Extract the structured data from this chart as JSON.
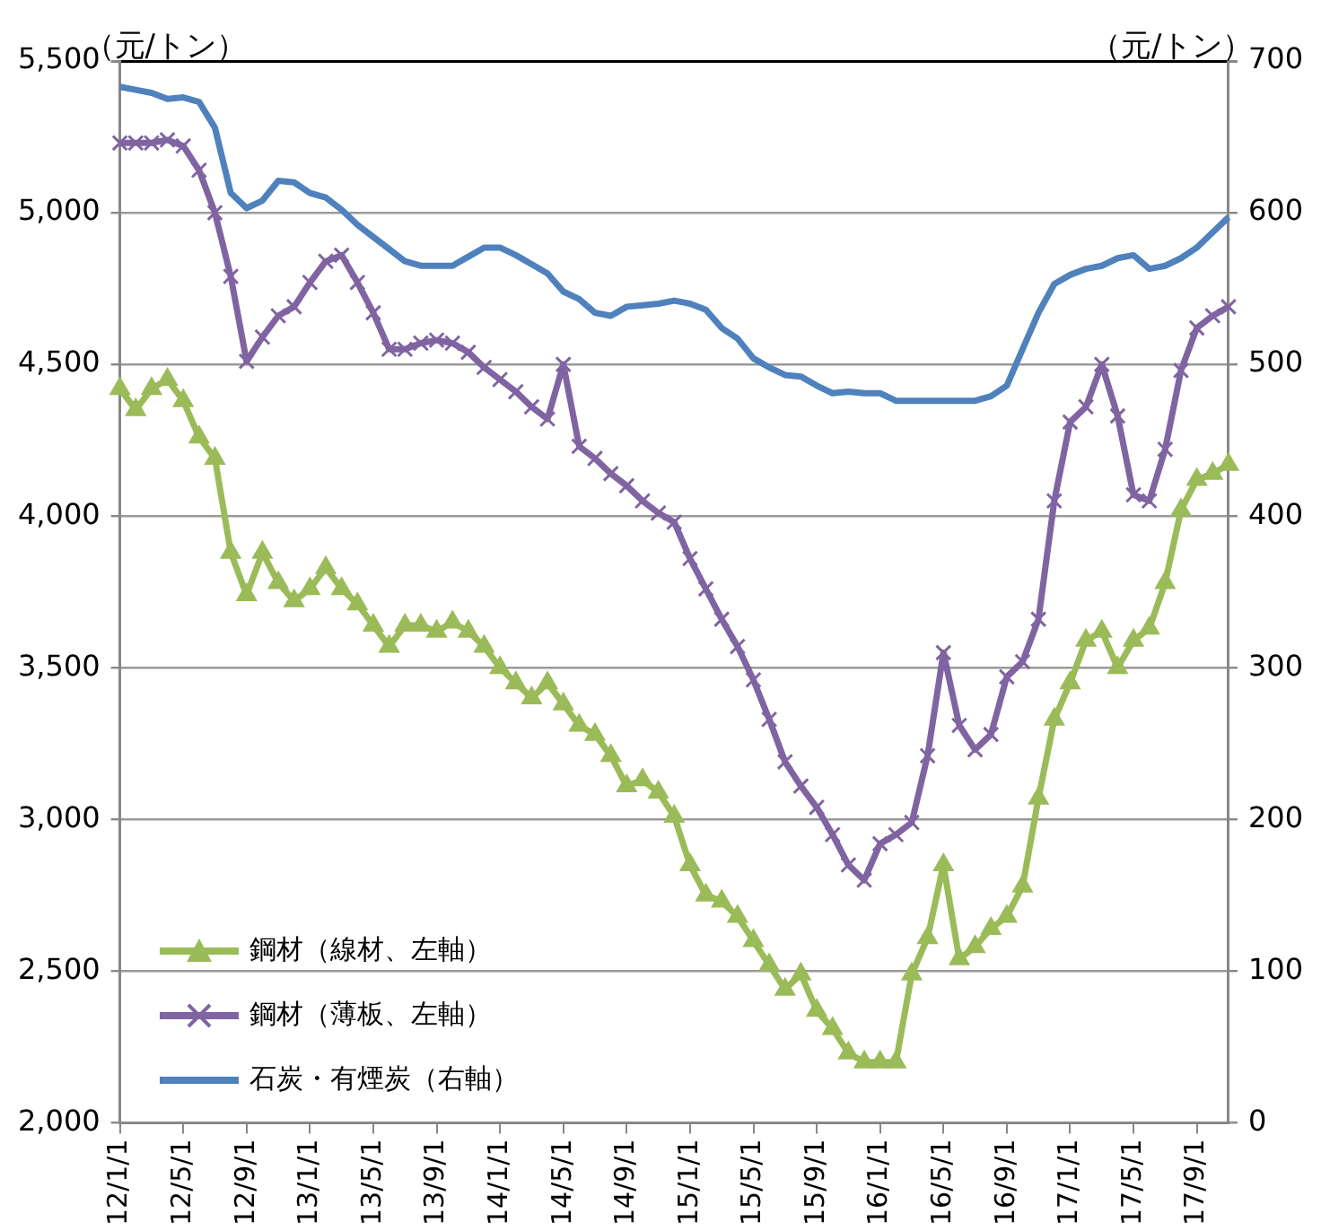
{
  "chart_data": {
    "type": "line",
    "categories": [
      "12/1/1",
      null,
      null,
      null,
      "12/5/1",
      null,
      null,
      null,
      "12/9/1",
      null,
      null,
      null,
      "13/1/1",
      null,
      null,
      null,
      "13/5/1",
      null,
      null,
      null,
      "13/9/1",
      null,
      null,
      null,
      "14/1/1",
      null,
      null,
      null,
      "14/5/1",
      null,
      null,
      null,
      "14/9/1",
      null,
      null,
      null,
      "15/1/1",
      null,
      null,
      null,
      "15/5/1",
      null,
      null,
      null,
      "15/9/1",
      null,
      null,
      null,
      "16/1/1",
      null,
      null,
      null,
      "16/5/1",
      null,
      null,
      null,
      "16/9/1",
      null,
      null,
      null,
      "17/1/1",
      null,
      null,
      null,
      "17/5/1",
      null,
      null,
      null,
      "17/9/1",
      null,
      null
    ],
    "series": [
      {
        "name": "鋼材（線材、左軸）",
        "color": "#9bbb59",
        "marker": "triangle",
        "values": [
          4420,
          4350,
          4420,
          4450,
          4380,
          4260,
          4190,
          3880,
          3740,
          3880,
          3780,
          3720,
          3760,
          3830,
          3760,
          3710,
          3640,
          3570,
          3640,
          3640,
          3620,
          3650,
          3620,
          3570,
          3500,
          3450,
          3400,
          3450,
          3380,
          3310,
          3280,
          3210,
          3110,
          3130,
          3090,
          3010,
          2850,
          2750,
          2730,
          2680,
          2600,
          2520,
          2440,
          2490,
          2370,
          2310,
          2230,
          2200,
          2200,
          2200,
          2490,
          2610,
          2850,
          2540,
          2580,
          2640,
          2680,
          2780,
          3070,
          3330,
          3450,
          3590,
          3620,
          3500,
          3590,
          3630,
          3780,
          4020,
          4120,
          4140,
          4170
        ]
      },
      {
        "name": "鋼材（薄板、左軸）",
        "color": "#8064a2",
        "marker": "cross",
        "values": [
          5230,
          5230,
          5230,
          5240,
          5220,
          5140,
          5000,
          4790,
          4510,
          4590,
          4660,
          4690,
          4770,
          4840,
          4860,
          4770,
          4670,
          4550,
          4550,
          4570,
          4580,
          4570,
          4540,
          4490,
          4450,
          4410,
          4360,
          4320,
          4500,
          4230,
          4190,
          4140,
          4100,
          4050,
          4010,
          3980,
          3860,
          3760,
          3660,
          3570,
          3460,
          3330,
          3190,
          3110,
          3040,
          2950,
          2850,
          2800,
          2920,
          2950,
          2990,
          3210,
          3550,
          3310,
          3230,
          3280,
          3470,
          3520,
          3660,
          4050,
          4310,
          4360,
          4500,
          4330,
          4070,
          4050,
          4220,
          4480,
          4620,
          4660,
          4690
        ]
      },
      {
        "name": "石炭・有煙炭（右軸）",
        "color": "#4f81bd",
        "marker": "none",
        "axis": "y2",
        "values": [
          683,
          681,
          679,
          675,
          676,
          673,
          656,
          613,
          603,
          608,
          621,
          620,
          613,
          610,
          602,
          592,
          584,
          576,
          568,
          565,
          565,
          565,
          571,
          577,
          577,
          572,
          566,
          560,
          548,
          543,
          534,
          532,
          538,
          539,
          540,
          542,
          540,
          536,
          524,
          517,
          504,
          498,
          493,
          492,
          486,
          481,
          482,
          481,
          481,
          476,
          476,
          476,
          476,
          476,
          476,
          479,
          486,
          510,
          534,
          553,
          559,
          563,
          565,
          570,
          572,
          563,
          565,
          570,
          577,
          587,
          597
        ]
      }
    ],
    "ylabel": "（元/トン）",
    "y2label": "（元/トン）",
    "ylim": [
      2000,
      5500
    ],
    "yticks": [
      {
        "value": 2000,
        "label": "2,000"
      },
      {
        "value": 2500,
        "label": "2,500"
      },
      {
        "value": 3000,
        "label": "3,000"
      },
      {
        "value": 3500,
        "label": "3,500"
      },
      {
        "value": 4000,
        "label": "4,000"
      },
      {
        "value": 4500,
        "label": "4,500"
      },
      {
        "value": 5000,
        "label": "5,000"
      },
      {
        "value": 5500,
        "label": "5,500"
      }
    ],
    "y2lim": [
      0,
      700
    ],
    "y2ticks": [
      0,
      100,
      200,
      300,
      400,
      500,
      600,
      700
    ],
    "grid": "y",
    "legend": "bottom left"
  }
}
